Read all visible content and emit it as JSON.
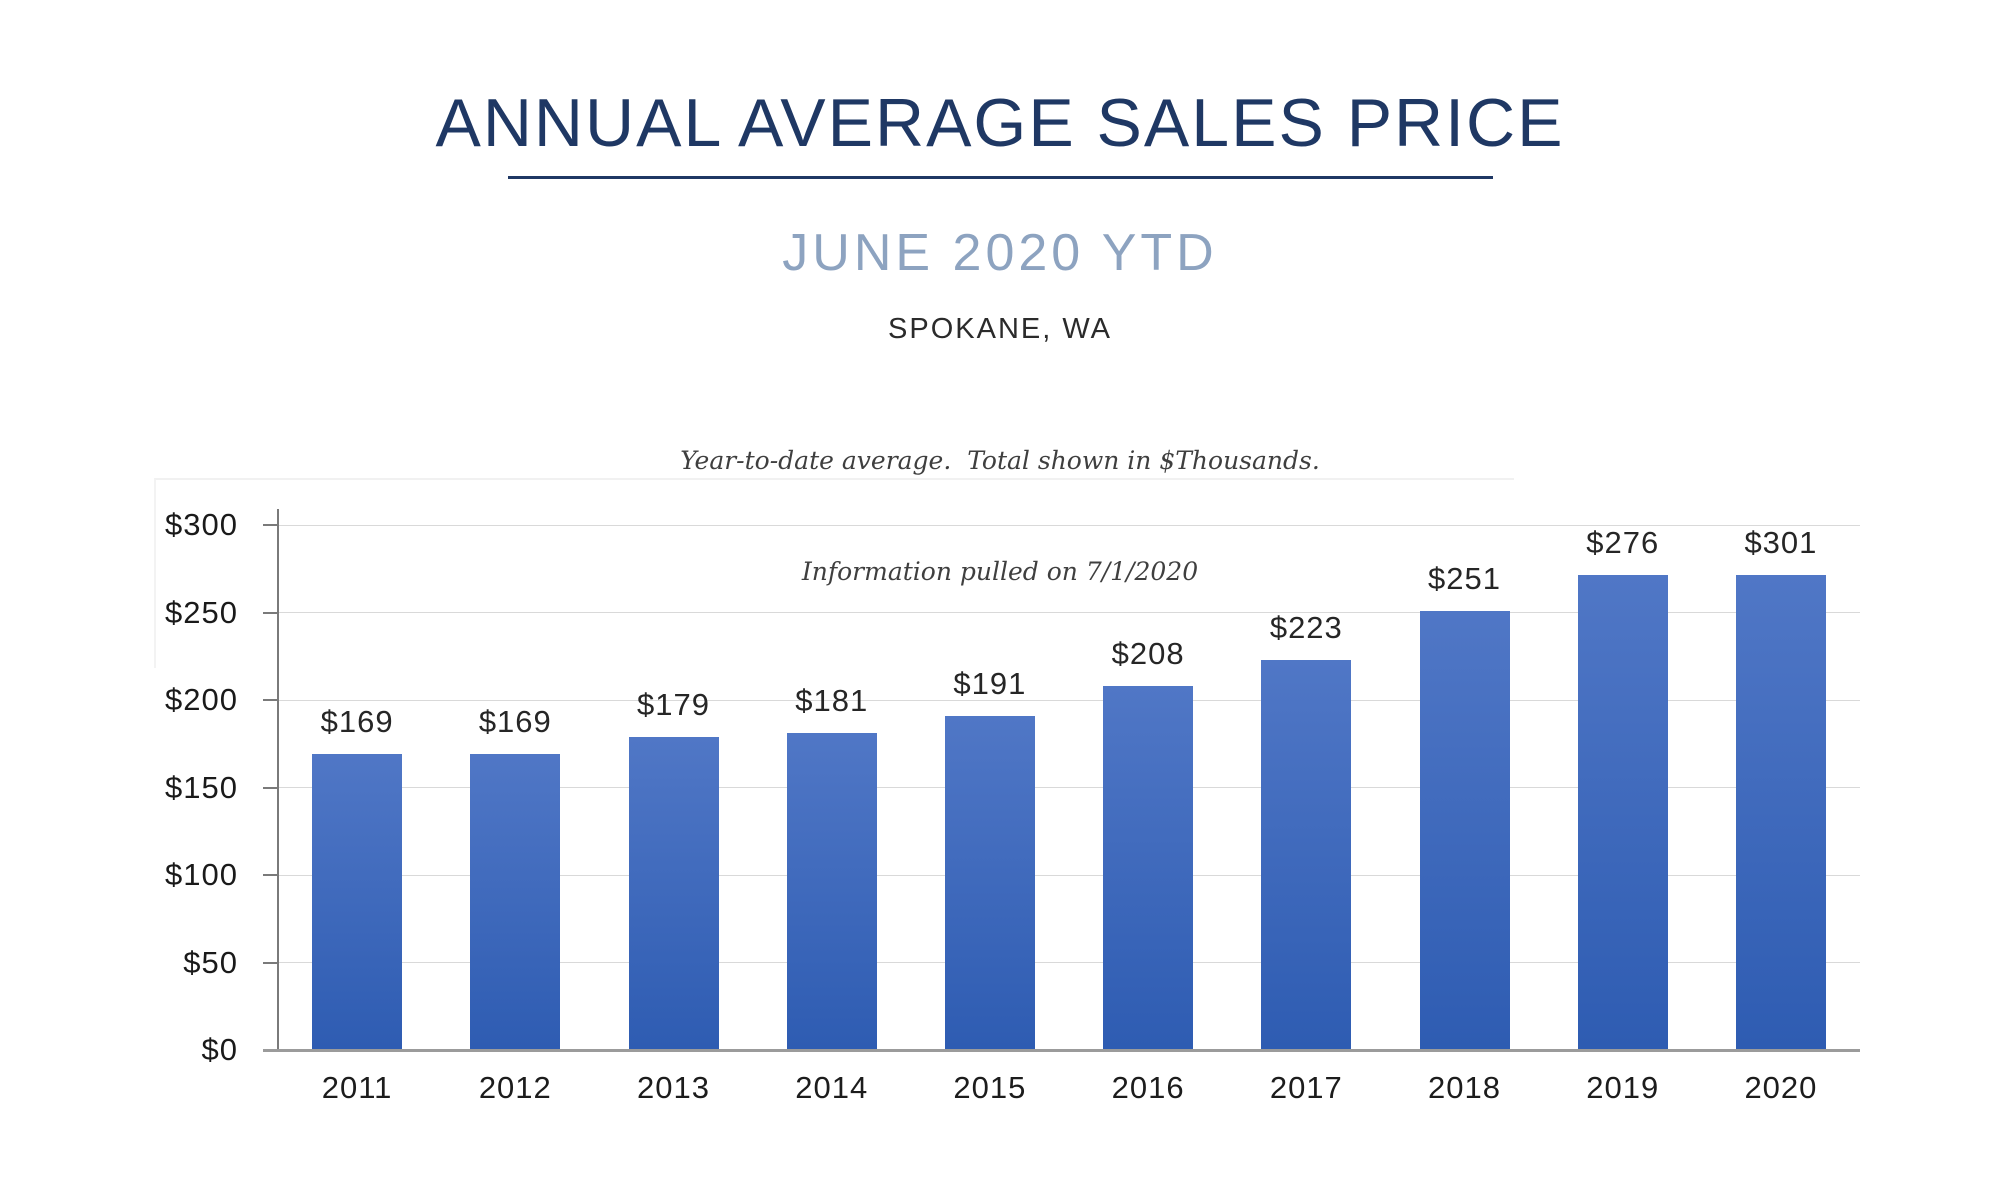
{
  "header": {
    "title": "ANNUAL AVERAGE SALES PRICE",
    "subtitle": "JUNE 2020 YTD",
    "location": "SPOKANE, WA",
    "note_line1": "Year-to-date average.  Total shown in $Thousands.",
    "note_line2": "Information pulled on 7/1/2020"
  },
  "colors": {
    "title_navy": "#1f3864",
    "subtitle_blue": "#8da3c0",
    "bar_gradient_top": "#5077c6",
    "bar_gradient_bottom": "#2e5cb2",
    "gridline": "#d9d9d9",
    "axis_line": "#9b9b9b",
    "y_axis_line": "#7a7a7a",
    "label_text": "#262626"
  },
  "chart_data": {
    "type": "bar",
    "title": "ANNUAL AVERAGE SALES PRICE",
    "subtitle": "JUNE 2020 YTD",
    "categories": [
      "2011",
      "2012",
      "2013",
      "2014",
      "2015",
      "2016",
      "2017",
      "2018",
      "2019",
      "2020"
    ],
    "values": [
      169,
      169,
      179,
      181,
      191,
      208,
      223,
      251,
      276,
      301
    ],
    "value_labels": [
      "$169",
      "$169",
      "$179",
      "$181",
      "$191",
      "$208",
      "$223",
      "$251",
      "$276",
      "$301"
    ],
    "xlabel": "",
    "ylabel": "",
    "ylim": [
      0,
      300
    ],
    "yticks": [
      0,
      50,
      100,
      150,
      200,
      250,
      300
    ],
    "ytick_labels": [
      "$0",
      "$50",
      "$100",
      "$150",
      "$200",
      "$250",
      "$300"
    ],
    "grid": true,
    "legend": false,
    "units": "$Thousands"
  }
}
